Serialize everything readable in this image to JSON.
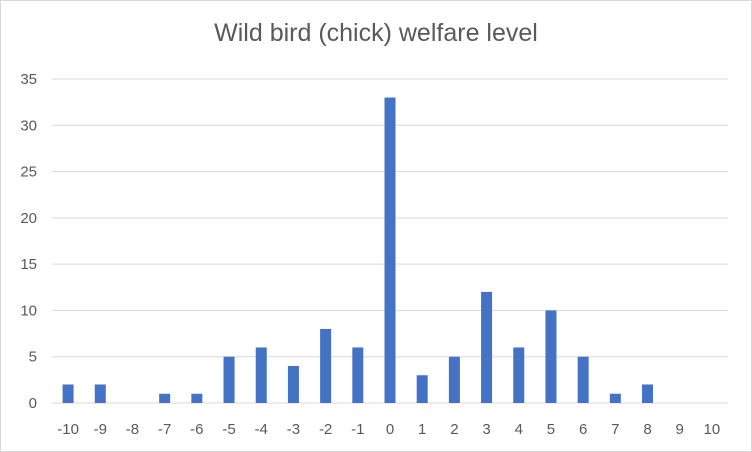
{
  "chart_data": {
    "type": "bar",
    "title": "Wild bird (chick) welfare level",
    "xlabel": "",
    "ylabel": "",
    "categories": [
      "-10",
      "-9",
      "-8",
      "-7",
      "-6",
      "-5",
      "-4",
      "-3",
      "-2",
      "-1",
      "0",
      "1",
      "2",
      "3",
      "4",
      "5",
      "6",
      "7",
      "8",
      "9",
      "10"
    ],
    "values": [
      2,
      2,
      0,
      1,
      1,
      5,
      6,
      4,
      8,
      6,
      33,
      3,
      5,
      12,
      6,
      10,
      5,
      1,
      2,
      0,
      0
    ],
    "ylim": [
      0,
      35
    ],
    "yticks": [
      "0",
      "5",
      "10",
      "15",
      "20",
      "25",
      "30",
      "35"
    ],
    "grid": true,
    "legend": "none",
    "colors": {
      "bar": "#4472c4",
      "grid": "#d9d9d9",
      "text": "#595959"
    }
  }
}
